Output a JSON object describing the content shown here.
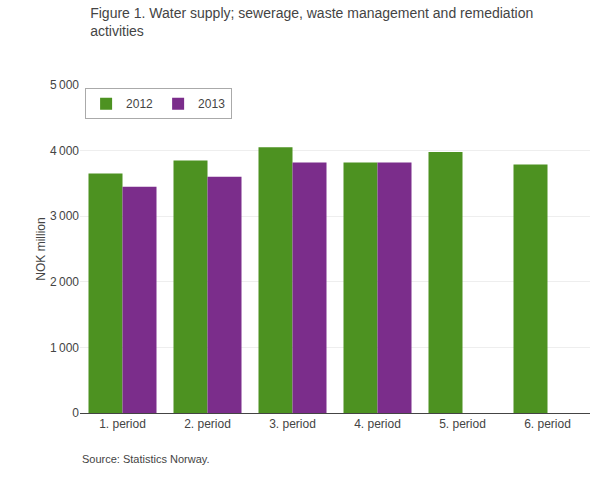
{
  "chart_data": {
    "type": "bar",
    "title": "Figure 1. Water supply; sewerage, waste management and remediation activities",
    "ylabel": "NOK million",
    "source": "Source: Statistics Norway.",
    "categories": [
      "1. period",
      "2. period",
      "3. period",
      "4. period",
      "5. period",
      "6. period"
    ],
    "series": [
      {
        "name": "2012",
        "color": "#4d9221",
        "values": [
          3650,
          3850,
          4050,
          3820,
          3980,
          3790
        ]
      },
      {
        "name": "2013",
        "color": "#7b2d8b",
        "values": [
          3450,
          3600,
          3820,
          3820,
          null,
          null
        ]
      }
    ],
    "ylim": [
      0,
      5000
    ],
    "yticks": [
      0,
      {
        "value": 1000,
        "label": "1 000"
      },
      {
        "value": 2000,
        "label": "2 000"
      },
      {
        "value": 3000,
        "label": "3 000"
      },
      {
        "value": 4000,
        "label": "4 000"
      },
      {
        "value": 5000,
        "label": "5 000"
      }
    ],
    "grid": true,
    "legend": "upper left"
  }
}
